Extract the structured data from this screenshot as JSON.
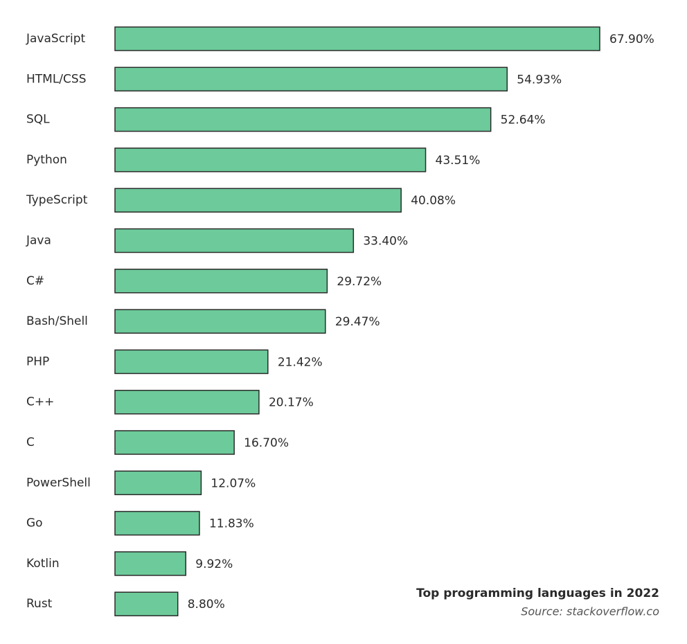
{
  "chart_data": {
    "type": "bar",
    "orientation": "horizontal",
    "title": "Top programming languages in 2022",
    "subtitle": "Source: stackoverflow.co",
    "categories": [
      "JavaScript",
      "HTML/CSS",
      "SQL",
      "Python",
      "TypeScript",
      "Java",
      "C#",
      "Bash/Shell",
      "PHP",
      "C++",
      "C",
      "PowerShell",
      "Go",
      "Kotlin",
      "Rust"
    ],
    "values": [
      67.9,
      54.93,
      52.64,
      43.51,
      40.08,
      33.4,
      29.72,
      29.47,
      21.42,
      20.17,
      16.7,
      12.07,
      11.83,
      9.92,
      8.8
    ],
    "value_labels": [
      "67.90%",
      "54.93%",
      "52.64%",
      "43.51%",
      "40.08%",
      "33.40%",
      "29.72%",
      "29.47%",
      "21.42%",
      "20.17%",
      "16.70%",
      "12.07%",
      "11.83%",
      "9.92%",
      "8.80%"
    ],
    "color": "#6dca9a"
  }
}
